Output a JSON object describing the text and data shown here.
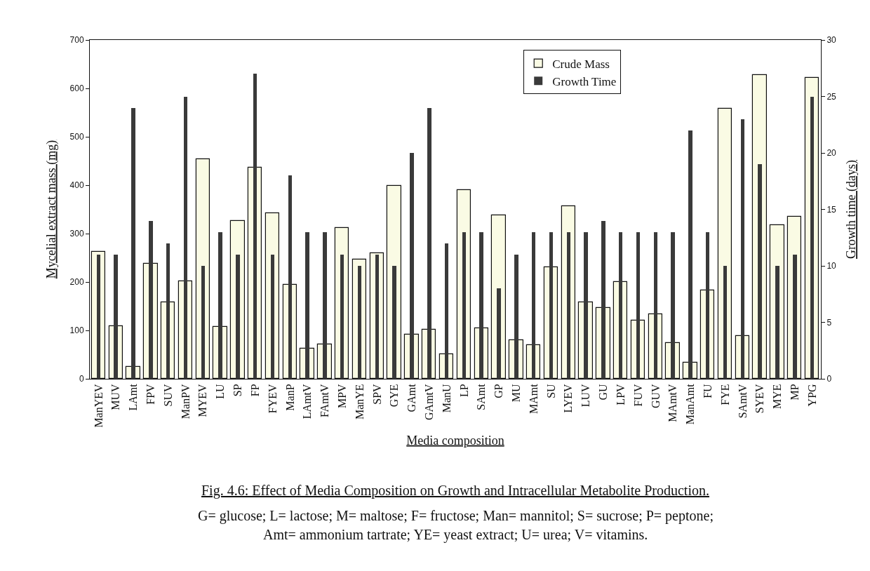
{
  "chart_data": {
    "type": "bar",
    "categories": [
      "ManYEV",
      "MUV",
      "LAmt",
      "FPV",
      "SUV",
      "ManPV",
      "MYEV",
      "LU",
      "SP",
      "FP",
      "FYEV",
      "ManP",
      "LAmtV",
      "FAmtV",
      "MPV",
      "ManYE",
      "SPV",
      "GYE",
      "GAmt",
      "GAmtV",
      "ManU",
      "LP",
      "SAmt",
      "GP",
      "MU",
      "MAmt",
      "SU",
      "LYEV",
      "LUV",
      "GU",
      "LPV",
      "FUV",
      "GUV",
      "MAmtV",
      "ManAmt",
      "FU",
      "FYE",
      "SAmtV",
      "SYEV",
      "MYE",
      "MP",
      "YPG"
    ],
    "series": [
      {
        "name": "Crude Mass",
        "color": "#fafbe4",
        "axis": "y",
        "values": [
          262,
          108,
          25,
          238,
          158,
          202,
          454,
          107,
          326,
          436,
          342,
          194,
          62,
          71,
          311,
          247,
          260,
          398,
          92,
          102,
          51,
          390,
          104,
          338,
          80,
          70,
          231,
          356,
          158,
          146,
          200,
          121,
          133,
          74,
          33,
          183,
          558,
          89,
          627,
          318,
          335,
          622
        ]
      },
      {
        "name": "Growth Time",
        "color": "#3a3a3a",
        "axis": "y2",
        "values": [
          11,
          11,
          24,
          14,
          12,
          25,
          10,
          13,
          11,
          27,
          11,
          18,
          13,
          13,
          11,
          10,
          11,
          10,
          20,
          24,
          12,
          13,
          13,
          8,
          11,
          13,
          13,
          13,
          13,
          14,
          13,
          13,
          13,
          13,
          22,
          13,
          10,
          23,
          19,
          10,
          11,
          25
        ]
      }
    ],
    "xlabel": "Media composition",
    "ylabel": "Mycelial extract mass (mg)",
    "y2label": "Growth time (days)",
    "ylim": [
      0,
      700
    ],
    "yticks": [
      0,
      100,
      200,
      300,
      400,
      500,
      600,
      700
    ],
    "y2lim": [
      0,
      30
    ],
    "y2ticks": [
      0,
      5,
      10,
      15,
      20,
      25,
      30
    ],
    "legend": "top",
    "grid": false,
    "annotations": [
      "Fig. 4.6: Effect of Media Composition on Growth and Intracellular Metabolite Production.",
      "G= glucose; L= lactose; M= maltose; F= fructose; Man= mannitol; S= sucrose; P= peptone;",
      "Amt= ammonium tartrate; YE= yeast extract; U= urea; V= vitamins."
    ]
  }
}
